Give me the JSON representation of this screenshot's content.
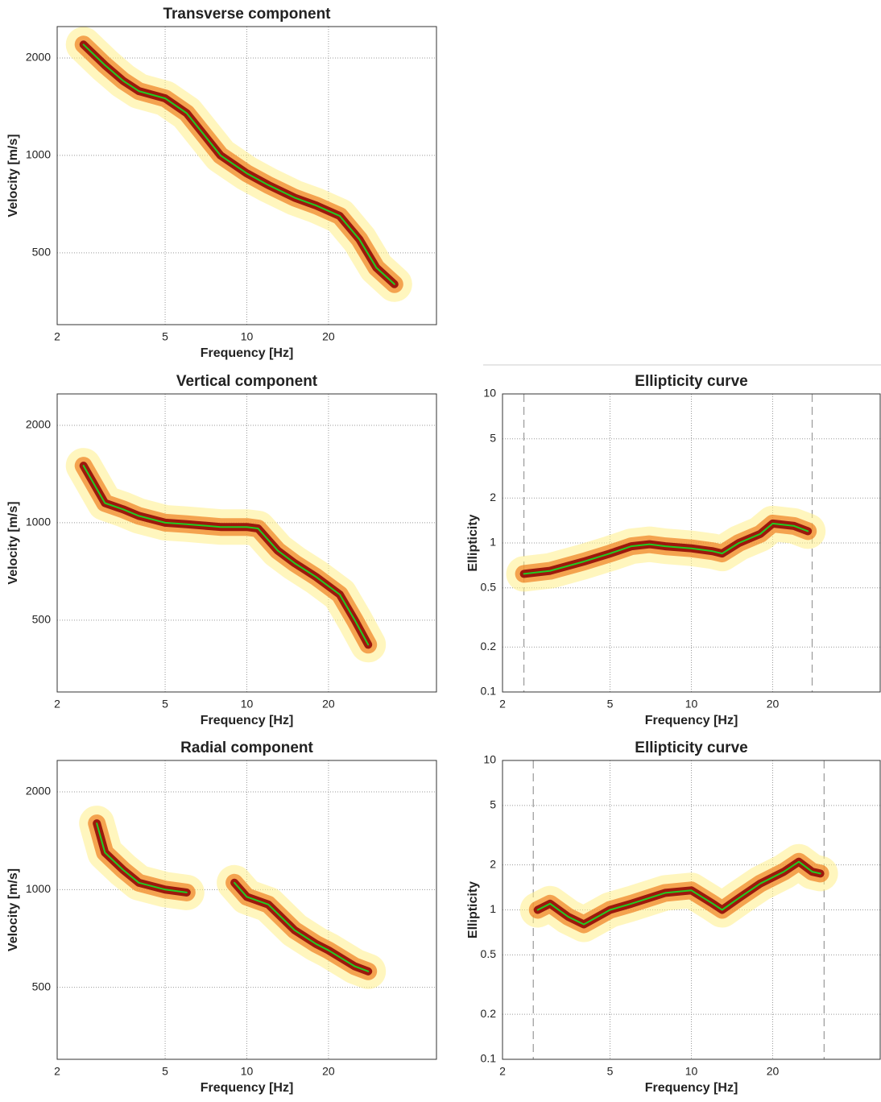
{
  "chart_data": [
    {
      "type": "line",
      "title": "Transverse component",
      "xlabel": "Frequency [Hz]",
      "ylabel": "Velocity [m/s]",
      "xscale": "log",
      "yscale": "log",
      "xlim": [
        2,
        50
      ],
      "ylim": [
        300,
        2500
      ],
      "xticks": [
        2,
        5,
        10,
        20
      ],
      "yticks": [
        500,
        1000,
        2000
      ],
      "grid": true,
      "x": [
        2.5,
        3,
        3.5,
        4,
        5,
        6,
        7,
        8,
        10,
        12,
        15,
        18,
        22,
        26,
        30,
        35
      ],
      "series": [
        {
          "color": "#22cc22",
          "values": [
            2200,
            1900,
            1700,
            1580,
            1500,
            1350,
            1150,
            1000,
            880,
            810,
            740,
            700,
            650,
            550,
            450,
            400
          ]
        }
      ]
    },
    {
      "type": "line",
      "title": "Vertical component",
      "xlabel": "Frequency [Hz]",
      "ylabel": "Velocity [m/s]",
      "xscale": "log",
      "yscale": "log",
      "xlim": [
        2,
        50
      ],
      "ylim": [
        300,
        2500
      ],
      "xticks": [
        2,
        5,
        10,
        20
      ],
      "yticks": [
        500,
        1000,
        2000
      ],
      "grid": true,
      "x": [
        2.5,
        3,
        3.5,
        4,
        5,
        6,
        8,
        10,
        11,
        13,
        15,
        18,
        22,
        25,
        28
      ],
      "series": [
        {
          "color": "#22cc22",
          "values": [
            1500,
            1150,
            1100,
            1050,
            1000,
            990,
            970,
            970,
            960,
            820,
            750,
            680,
            600,
            500,
            420
          ]
        }
      ]
    },
    {
      "type": "line",
      "title": "Radial component",
      "xlabel": "Frequency [Hz]",
      "ylabel": "Velocity [m/s]",
      "xscale": "log",
      "yscale": "log",
      "xlim": [
        2,
        50
      ],
      "ylim": [
        300,
        2500
      ],
      "xticks": [
        2,
        5,
        10,
        20
      ],
      "yticks": [
        500,
        1000,
        2000
      ],
      "grid": true,
      "x": [
        2.8,
        3,
        3.5,
        4,
        5,
        6,
        7.5,
        9,
        10,
        12,
        15,
        18,
        20,
        25,
        28
      ],
      "series": [
        {
          "color": "#22cc22",
          "values": [
            1600,
            1300,
            1150,
            1050,
            1000,
            980,
            null,
            1050,
            950,
            900,
            750,
            680,
            650,
            580,
            560
          ]
        }
      ]
    },
    {
      "type": "line",
      "title": "Ellipticity curve",
      "xlabel": "Frequency [Hz]",
      "ylabel": "Ellipticity",
      "xscale": "log",
      "yscale": "log",
      "xlim": [
        2,
        50
      ],
      "ylim": [
        0.1,
        10
      ],
      "xticks": [
        2,
        5,
        10,
        20
      ],
      "yticks": [
        0.1,
        0.2,
        0.5,
        1,
        2,
        5,
        10
      ],
      "grid": true,
      "limits": [
        2.4,
        28
      ],
      "x": [
        2.4,
        3,
        4,
        5,
        6,
        7,
        8,
        10,
        12,
        13,
        15,
        18,
        20,
        24,
        27
      ],
      "series": [
        {
          "color": "#22cc22",
          "values": [
            0.62,
            0.65,
            0.75,
            0.85,
            0.95,
            0.98,
            0.95,
            0.92,
            0.88,
            0.85,
            1.0,
            1.15,
            1.35,
            1.3,
            1.2
          ]
        }
      ]
    },
    {
      "type": "line",
      "title": "Ellipticity curve",
      "xlabel": "Frequency [Hz]",
      "ylabel": "Ellipticity",
      "xscale": "log",
      "yscale": "log",
      "xlim": [
        2,
        50
      ],
      "ylim": [
        0.1,
        10
      ],
      "xticks": [
        2,
        5,
        10,
        20
      ],
      "yticks": [
        0.1,
        0.2,
        0.5,
        1,
        2,
        5,
        10
      ],
      "grid": true,
      "limits": [
        2.6,
        31
      ],
      "x": [
        2.7,
        3,
        3.5,
        4,
        5,
        6,
        8,
        10,
        12,
        13,
        15,
        18,
        22,
        25,
        28,
        30
      ],
      "series": [
        {
          "color": "#22cc22",
          "values": [
            1.0,
            1.1,
            0.9,
            0.8,
            1.0,
            1.1,
            1.3,
            1.35,
            1.1,
            1.0,
            1.2,
            1.5,
            1.8,
            2.1,
            1.8,
            1.75
          ]
        }
      ]
    }
  ]
}
